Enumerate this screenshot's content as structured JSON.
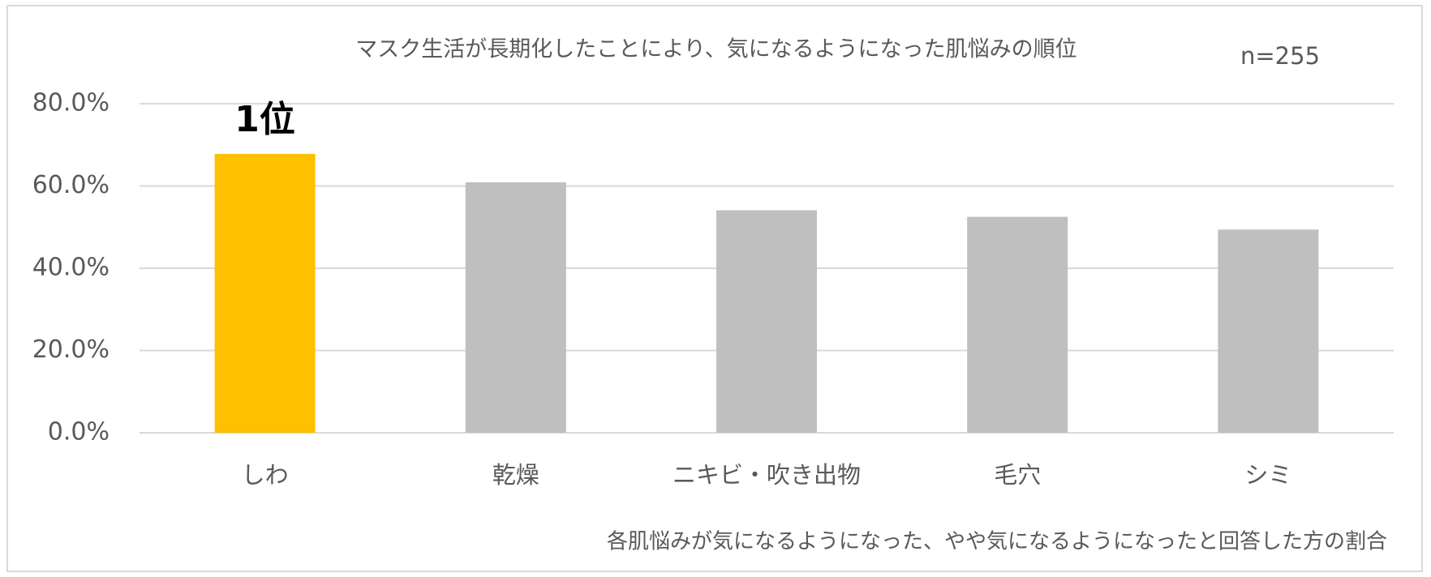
{
  "chart_data": {
    "type": "bar",
    "title": "マスク生活が長期化したことにより、気になるようになった肌悩みの順位",
    "subtitle": "n=255",
    "footnote": "各肌悩みが気になるようになった、やや気になるようになったと回答した方の割合",
    "annotation": "1位",
    "categories": [
      "しわ",
      "乾燥",
      "ニキビ・吹き出物",
      "毛穴",
      "シミ"
    ],
    "values": [
      67.8,
      60.9,
      54.1,
      52.5,
      49.4
    ],
    "colors": [
      "#ffc000",
      "#bfbfbf",
      "#bfbfbf",
      "#bfbfbf",
      "#bfbfbf"
    ],
    "ylim": [
      0,
      80
    ],
    "yticks": [
      {
        "value": 0,
        "label": "0.0%"
      },
      {
        "value": 20,
        "label": "20.0%"
      },
      {
        "value": 40,
        "label": "40.0%"
      },
      {
        "value": 60,
        "label": "60.0%"
      },
      {
        "value": 80,
        "label": "80.0%"
      }
    ],
    "grid": true
  }
}
